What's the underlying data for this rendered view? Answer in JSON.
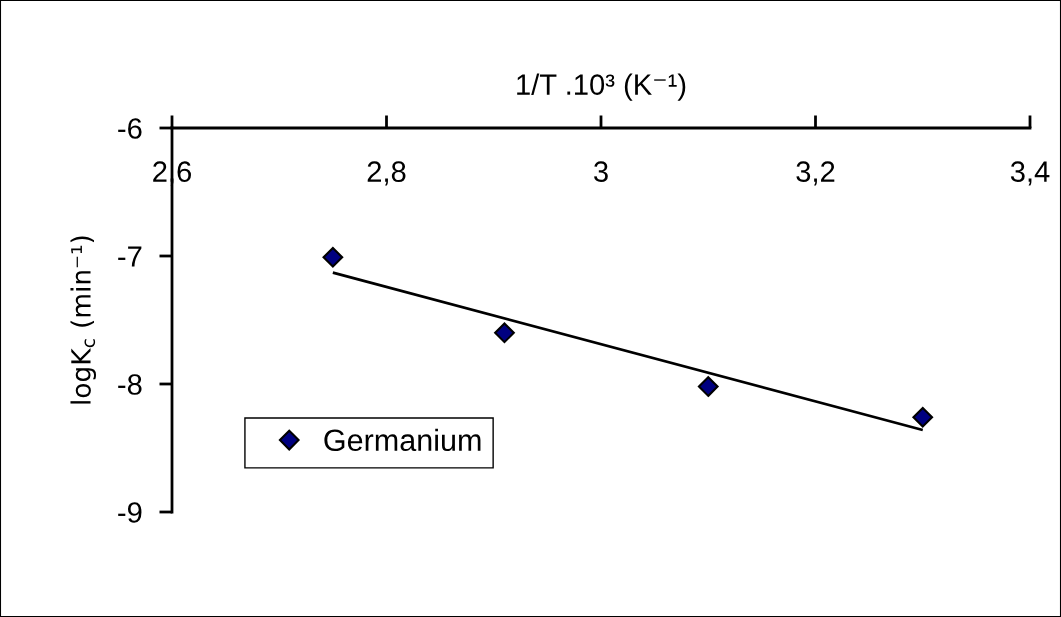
{
  "chart_data": {
    "type": "scatter",
    "xlabel": "1/T .10³ (K⁻¹)",
    "ylabel": "logK$_{c}$ (min⁻¹)",
    "xlim": [
      2.6,
      3.4
    ],
    "ylim": [
      -9,
      -6
    ],
    "xticks": [
      {
        "value": 2.6,
        "label": "2,6"
      },
      {
        "value": 2.8,
        "label": "2,8"
      },
      3,
      {
        "value": 3.2,
        "label": "3,2"
      },
      {
        "value": 3.4,
        "label": "3,4"
      }
    ],
    "yticks": [
      -9,
      -8,
      -7,
      -6
    ],
    "legend": "bottom left",
    "series": [
      {
        "name": "Germanium",
        "marker": "diamond",
        "color": "#000080",
        "x": [
          2.75,
          2.91,
          3.1,
          3.3
        ],
        "values": [
          -7.01,
          -7.6,
          -8.02,
          -8.26
        ]
      },
      {
        "type": "line",
        "color": "#000000",
        "line_style": "solid",
        "x": [
          2.75,
          3.3
        ],
        "values": [
          -7.13,
          -8.36
        ]
      }
    ]
  }
}
